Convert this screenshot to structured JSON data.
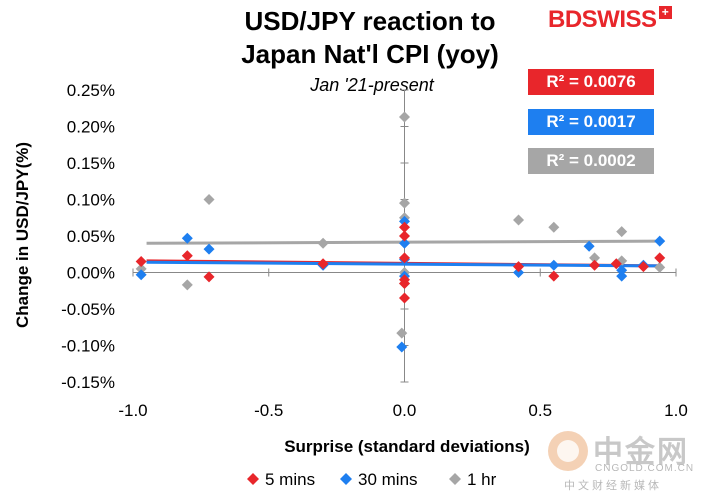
{
  "chart_data": {
    "type": "scatter",
    "title_line1": "USD/JPY reaction to",
    "title_line2": "Japan Nat'l CPI (yoy)",
    "subtitle": "Jan '21-present",
    "xlabel": "Surprise (standard deviations)",
    "ylabel": "Change in USD/JPY(%)",
    "xlim": [
      -1.0,
      1.0
    ],
    "ylim": [
      -0.15,
      0.25
    ],
    "x_ticks": [
      "-1.0",
      "-0.5",
      "0.0",
      "0.5",
      "1.0"
    ],
    "y_ticks": [
      "0.25%",
      "0.20%",
      "0.15%",
      "0.10%",
      "0.05%",
      "0.00%",
      "-0.05%",
      "-0.10%",
      "-0.15%"
    ],
    "grid": false,
    "legend_position": "bottom",
    "series": [
      {
        "name": "5 mins",
        "color": "#e8262b",
        "marker": "diamond",
        "r2_label": "R² = 0.0076",
        "trend": [
          [
            -0.95,
            0.016
          ],
          [
            0.95,
            0.009
          ]
        ],
        "points": [
          [
            -0.97,
            0.015
          ],
          [
            -0.8,
            0.023
          ],
          [
            -0.72,
            -0.006
          ],
          [
            -0.3,
            0.012
          ],
          [
            0.0,
            0.062
          ],
          [
            0.0,
            0.05
          ],
          [
            0.0,
            0.02
          ],
          [
            0.0,
            -0.01
          ],
          [
            0.0,
            -0.015
          ],
          [
            0.0,
            -0.035
          ],
          [
            0.42,
            0.008
          ],
          [
            0.55,
            -0.005
          ],
          [
            0.7,
            0.01
          ],
          [
            0.78,
            0.012
          ],
          [
            0.88,
            0.008
          ],
          [
            0.94,
            0.02
          ]
        ]
      },
      {
        "name": "30 mins",
        "color": "#1e7ff0",
        "marker": "diamond",
        "r2_label": "R² = 0.0017",
        "trend": [
          [
            -0.95,
            0.014
          ],
          [
            0.95,
            0.009
          ]
        ],
        "points": [
          [
            -0.97,
            -0.003
          ],
          [
            -0.8,
            0.047
          ],
          [
            -0.72,
            0.032
          ],
          [
            -0.3,
            0.01
          ],
          [
            0.0,
            0.07
          ],
          [
            0.0,
            0.04
          ],
          [
            0.0,
            0.018
          ],
          [
            0.0,
            -0.005
          ],
          [
            -0.01,
            -0.102
          ],
          [
            0.42,
            0.0
          ],
          [
            0.55,
            0.01
          ],
          [
            0.68,
            0.036
          ],
          [
            0.8,
            -0.005
          ],
          [
            0.8,
            0.003
          ],
          [
            0.94,
            0.043
          ],
          [
            0.88,
            0.01
          ]
        ]
      },
      {
        "name": "1 hr",
        "color": "#a6a6a6",
        "marker": "diamond",
        "r2_label": "R² = 0.0002",
        "trend": [
          [
            -0.95,
            0.04
          ],
          [
            0.95,
            0.043
          ]
        ],
        "points": [
          [
            -0.97,
            0.005
          ],
          [
            -0.8,
            -0.017
          ],
          [
            -0.72,
            0.1
          ],
          [
            -0.3,
            0.04
          ],
          [
            0.0,
            0.213
          ],
          [
            0.0,
            0.095
          ],
          [
            0.0,
            0.075
          ],
          [
            0.0,
            0.0
          ],
          [
            0.0,
            -0.015
          ],
          [
            -0.01,
            -0.083
          ],
          [
            0.42,
            0.072
          ],
          [
            0.55,
            0.062
          ],
          [
            0.7,
            0.02
          ],
          [
            0.8,
            0.016
          ],
          [
            0.8,
            0.056
          ],
          [
            0.94,
            0.007
          ]
        ]
      }
    ]
  },
  "branding": {
    "logo_bd": "BD",
    "logo_swiss": "SWISS",
    "logo_plus": "+",
    "watermark_cn": "中金网",
    "watermark_en": "CNGOLD.COM.CN",
    "watermark_sub": "中文财经新媒体"
  }
}
